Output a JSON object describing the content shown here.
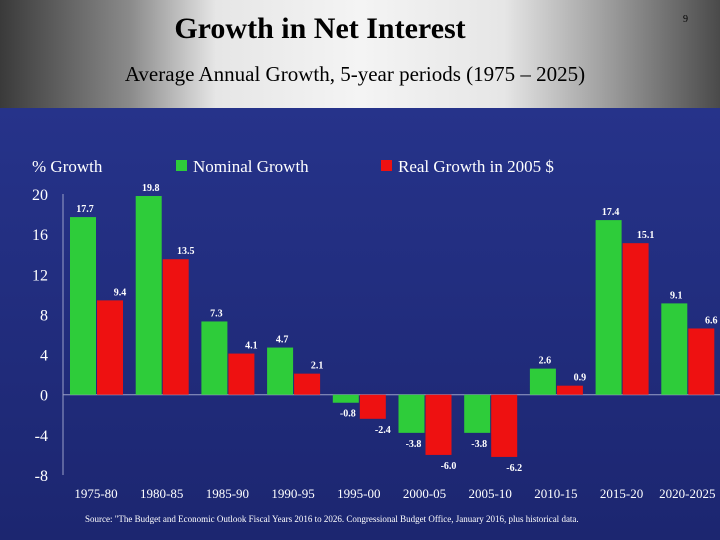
{
  "page_number": "9",
  "chart_data": {
    "type": "bar",
    "title": "Growth in Net Interest",
    "subtitle": "Average Annual Growth, 5-year periods (1975 – 2025)",
    "ylabel": "% Growth",
    "ylim": [
      -8,
      20
    ],
    "yticks": [
      20,
      16,
      12,
      8,
      4,
      0,
      -4,
      -8
    ],
    "categories": [
      "1975-80",
      "1980-85",
      "1985-90",
      "1990-95",
      "1995-00",
      "2000-05",
      "2005-10",
      "2010-15",
      "2015-20",
      "2020-2025"
    ],
    "series": [
      {
        "name": "Nominal Growth",
        "color": "#2ecc3a",
        "values": [
          17.7,
          19.8,
          7.3,
          4.7,
          -0.8,
          -3.8,
          -3.8,
          2.6,
          17.4,
          9.1
        ]
      },
      {
        "name": "Real Growth in 2005 $",
        "color": "#ee1111",
        "values": [
          9.4,
          13.5,
          4.1,
          2.1,
          -2.4,
          -6.0,
          -6.2,
          0.9,
          15.1,
          6.6
        ]
      }
    ],
    "legend_position": "top",
    "grid": false,
    "source": "Source: \"The Budget and Economic Outlook Fiscal Years 2016 to 2026. Congressional Budget Office, January 2016, plus historical data."
  }
}
